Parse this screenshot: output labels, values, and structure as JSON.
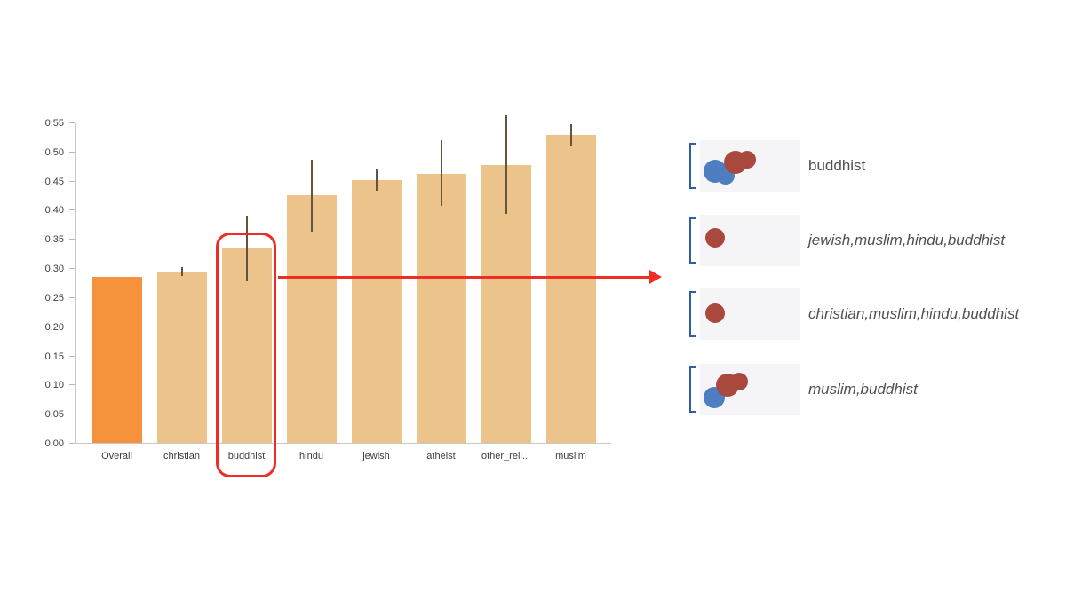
{
  "chart_data": {
    "type": "bar",
    "title": "",
    "xlabel": "",
    "ylabel": "",
    "categories": [
      "Overall",
      "christian",
      "buddhist",
      "hindu",
      "jewish",
      "atheist",
      "other_reli...",
      "muslim"
    ],
    "values": [
      0.285,
      0.292,
      0.335,
      0.425,
      0.451,
      0.462,
      0.477,
      0.528
    ],
    "error_low": [
      0.285,
      0.286,
      0.277,
      0.363,
      0.432,
      0.407,
      0.393,
      0.51
    ],
    "error_high": [
      0.285,
      0.301,
      0.39,
      0.486,
      0.471,
      0.519,
      0.562,
      0.547
    ],
    "ylim": [
      0,
      0.55
    ],
    "ytick_step": 0.05,
    "grid": false,
    "legend": "none",
    "highlighted_category": "buddhist",
    "colors": {
      "first_bar": "#f6923b",
      "bar": "#edc38c",
      "error": "#60563f"
    }
  },
  "annotation": {
    "color": "#ee2d24",
    "target_category": "buddhist"
  },
  "panel": {
    "palette": {
      "blue": "#4e7dc2",
      "red": "#a9493e"
    },
    "bracket_color": "#2f5da9",
    "thumb_bg": "#f5f5f7",
    "rows": [
      {
        "label": "buddhist",
        "italic": false,
        "circles": [
          {
            "c": "blue",
            "x": 17,
            "y": 35,
            "r": 13
          },
          {
            "c": "blue",
            "x": 29,
            "y": 40,
            "r": 10
          },
          {
            "c": "red",
            "x": 40,
            "y": 25,
            "r": 13
          },
          {
            "c": "red",
            "x": 53,
            "y": 22,
            "r": 10
          }
        ]
      },
      {
        "label": "jewish,muslim,hindu,buddhist",
        "italic": true,
        "circles": [
          {
            "c": "red",
            "x": 17,
            "y": 26,
            "r": 11
          }
        ]
      },
      {
        "label": "christian,muslim,hindu,buddhist",
        "italic": true,
        "circles": [
          {
            "c": "red",
            "x": 17,
            "y": 28,
            "r": 11
          }
        ]
      },
      {
        "label": "muslim,buddhist",
        "italic": true,
        "circles": [
          {
            "c": "blue",
            "x": 16,
            "y": 38,
            "r": 12
          },
          {
            "c": "red",
            "x": 31,
            "y": 24,
            "r": 13
          },
          {
            "c": "red",
            "x": 44,
            "y": 20,
            "r": 10
          }
        ]
      }
    ]
  }
}
